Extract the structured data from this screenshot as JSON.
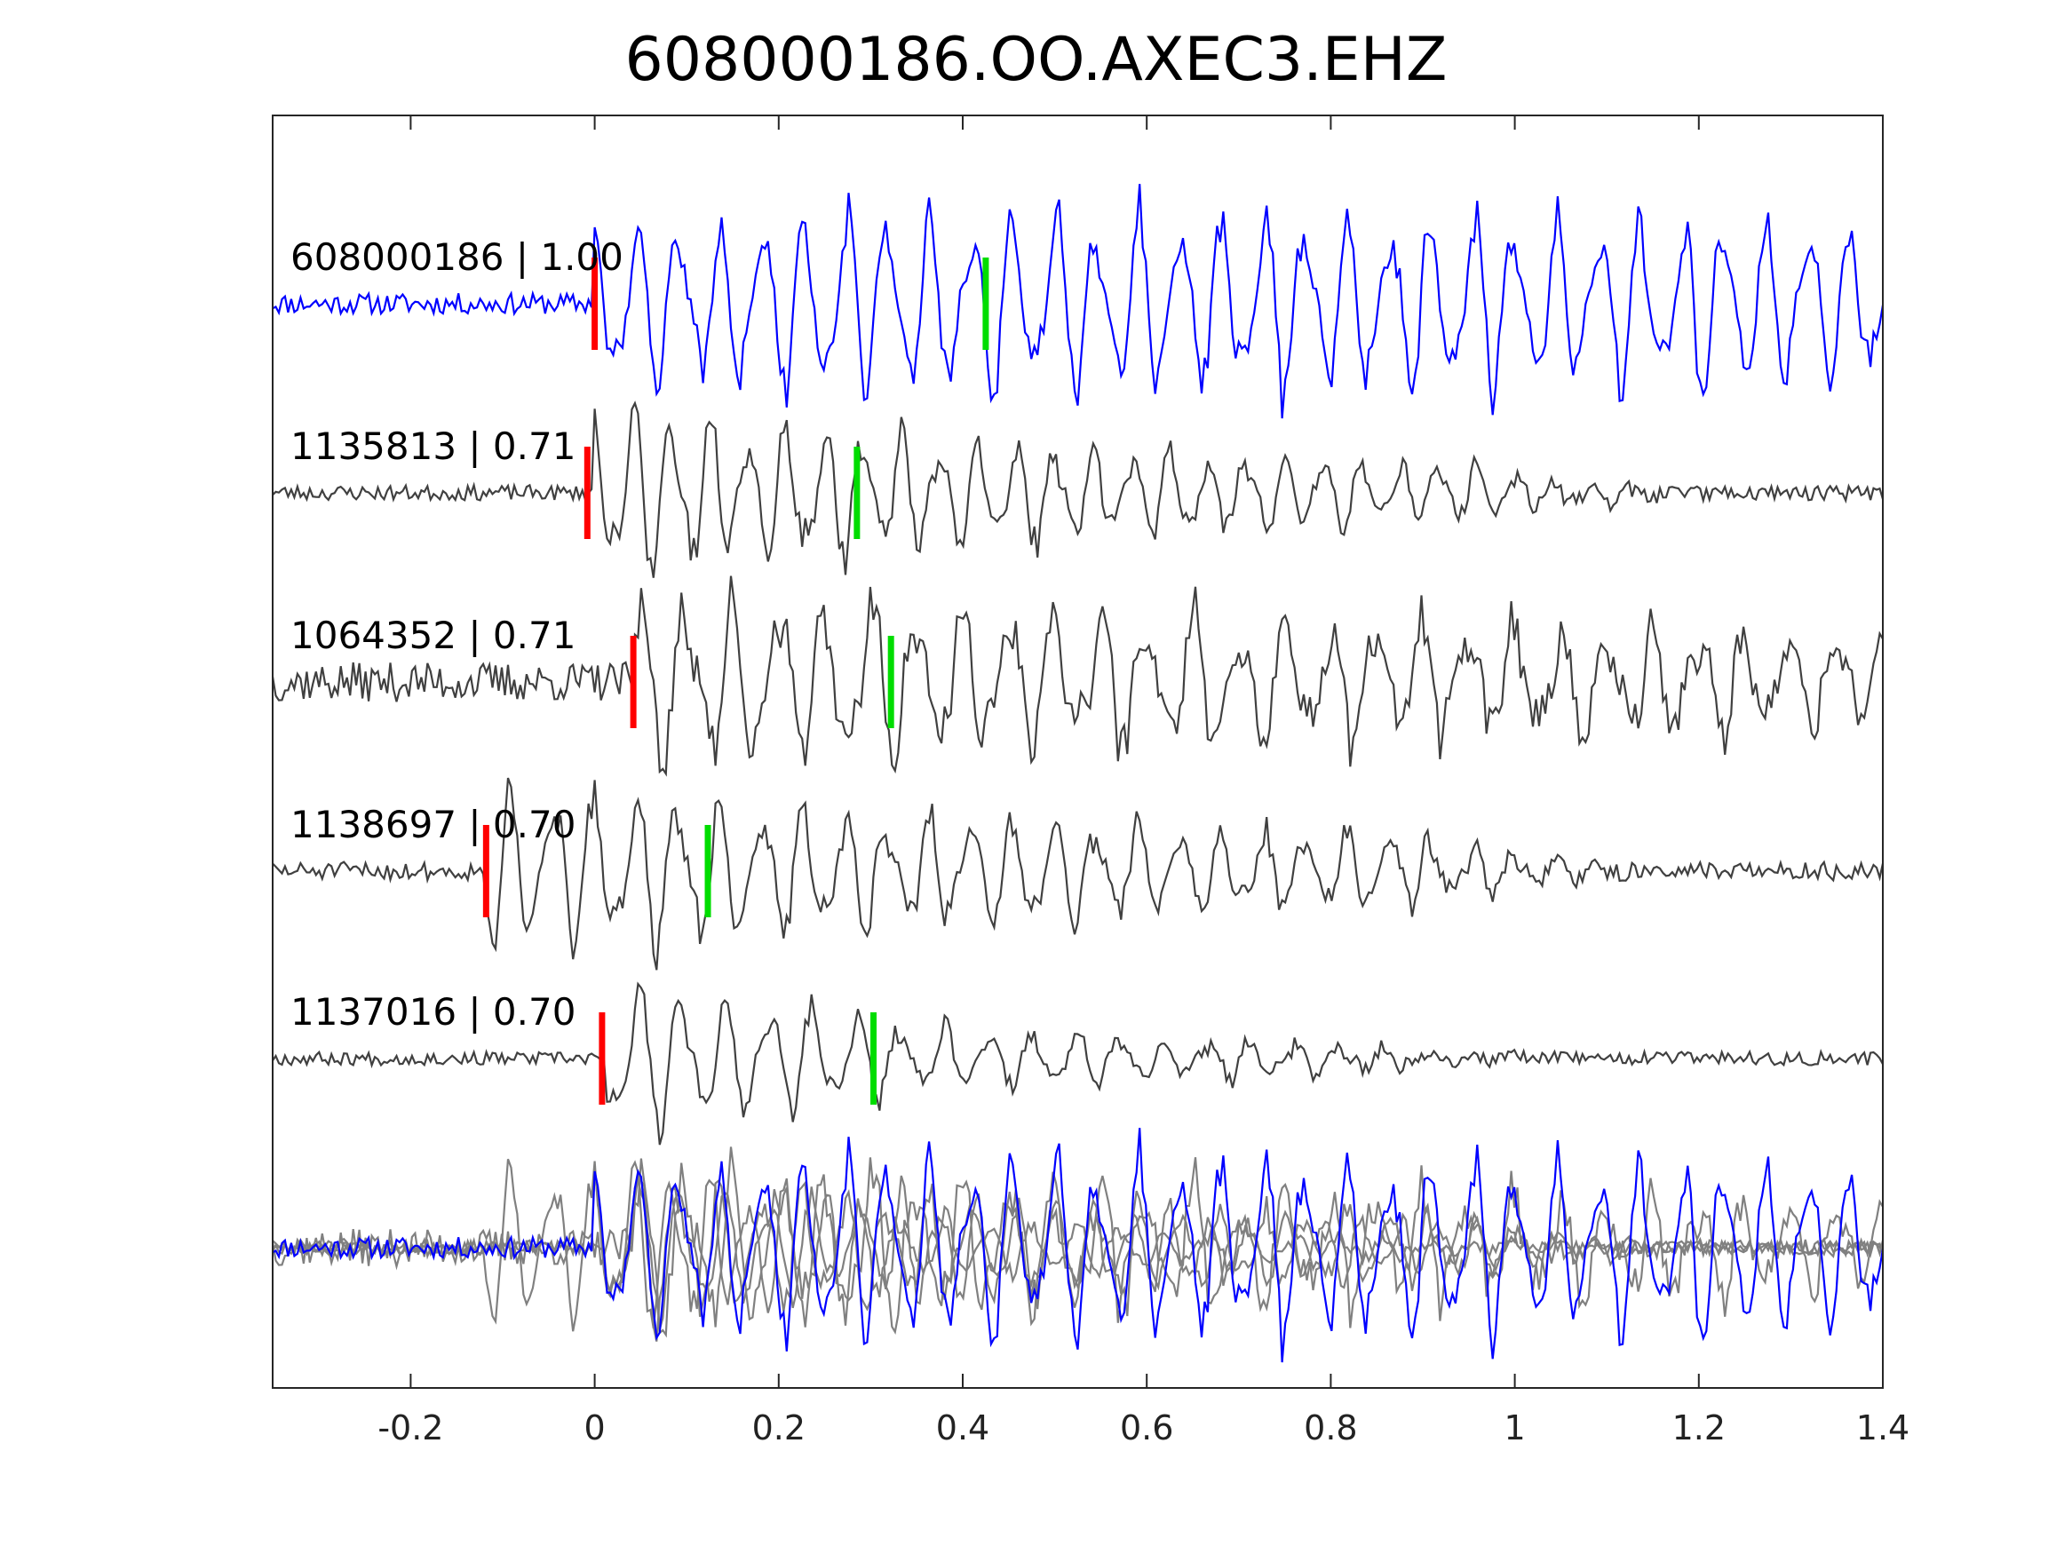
{
  "chart_data": {
    "type": "line",
    "title": "608000186.OO.AXEC3.EHZ",
    "xlabel": "",
    "ylabel": "",
    "xlim": [
      -0.35,
      1.4
    ],
    "xticks": [
      -0.2,
      0,
      0.2,
      0.4,
      0.6,
      0.8,
      1,
      1.2,
      1.4
    ],
    "xtick_labels": [
      "-0.2",
      "0",
      "0.2",
      "0.4",
      "0.6",
      "0.8",
      "1",
      "1.2",
      "1.4"
    ],
    "grid": false,
    "colors": {
      "template": "#0000ff",
      "match": "#404040",
      "overlay_match": "#808080",
      "p_pick": "#ff0000",
      "s_pick": "#00dd00",
      "axes": "#262626"
    },
    "series": [
      {
        "name": "608000186",
        "label": "608000186 | 1.00",
        "cc": 1.0,
        "p_pick": 0.0,
        "s_pick": 0.425,
        "amp": 0.86,
        "onset": 0.0,
        "dur": 1.4,
        "decay": 0.0,
        "freq": 22,
        "seed": 11,
        "noise": 0.12,
        "color_key": "template"
      },
      {
        "name": "1135813",
        "label": "1135813 | 0.71",
        "cc": 0.71,
        "p_pick": -0.008,
        "s_pick": 0.285,
        "amp": 0.94,
        "onset": 0.0,
        "dur": 0.95,
        "decay": 1.3,
        "freq": 24,
        "seed": 23,
        "noise": 0.08,
        "color_key": "match"
      },
      {
        "name": "1064352",
        "label": "1064352 | 0.71",
        "cc": 0.71,
        "p_pick": 0.042,
        "s_pick": 0.322,
        "amp": 0.88,
        "onset": 0.04,
        "dur": 1.36,
        "decay": 0.5,
        "freq": 20,
        "seed": 37,
        "noise": 0.22,
        "color_key": "match"
      },
      {
        "name": "1138697",
        "label": "1138697 | 0.70",
        "cc": 0.7,
        "p_pick": -0.118,
        "s_pick": 0.123,
        "amp": 0.9,
        "onset": -0.12,
        "dur": 1.0,
        "decay": 0.9,
        "freq": 22,
        "seed": 51,
        "noise": 0.1,
        "color_key": "match"
      },
      {
        "name": "1137016",
        "label": "1137016 | 0.70",
        "cc": 0.7,
        "p_pick": 0.008,
        "s_pick": 0.303,
        "amp": 0.82,
        "onset": 0.01,
        "dur": 0.8,
        "decay": 2.2,
        "freq": 21,
        "seed": 67,
        "noise": 0.08,
        "color_key": "match"
      }
    ],
    "stack": {
      "description_hidden": true
    }
  }
}
